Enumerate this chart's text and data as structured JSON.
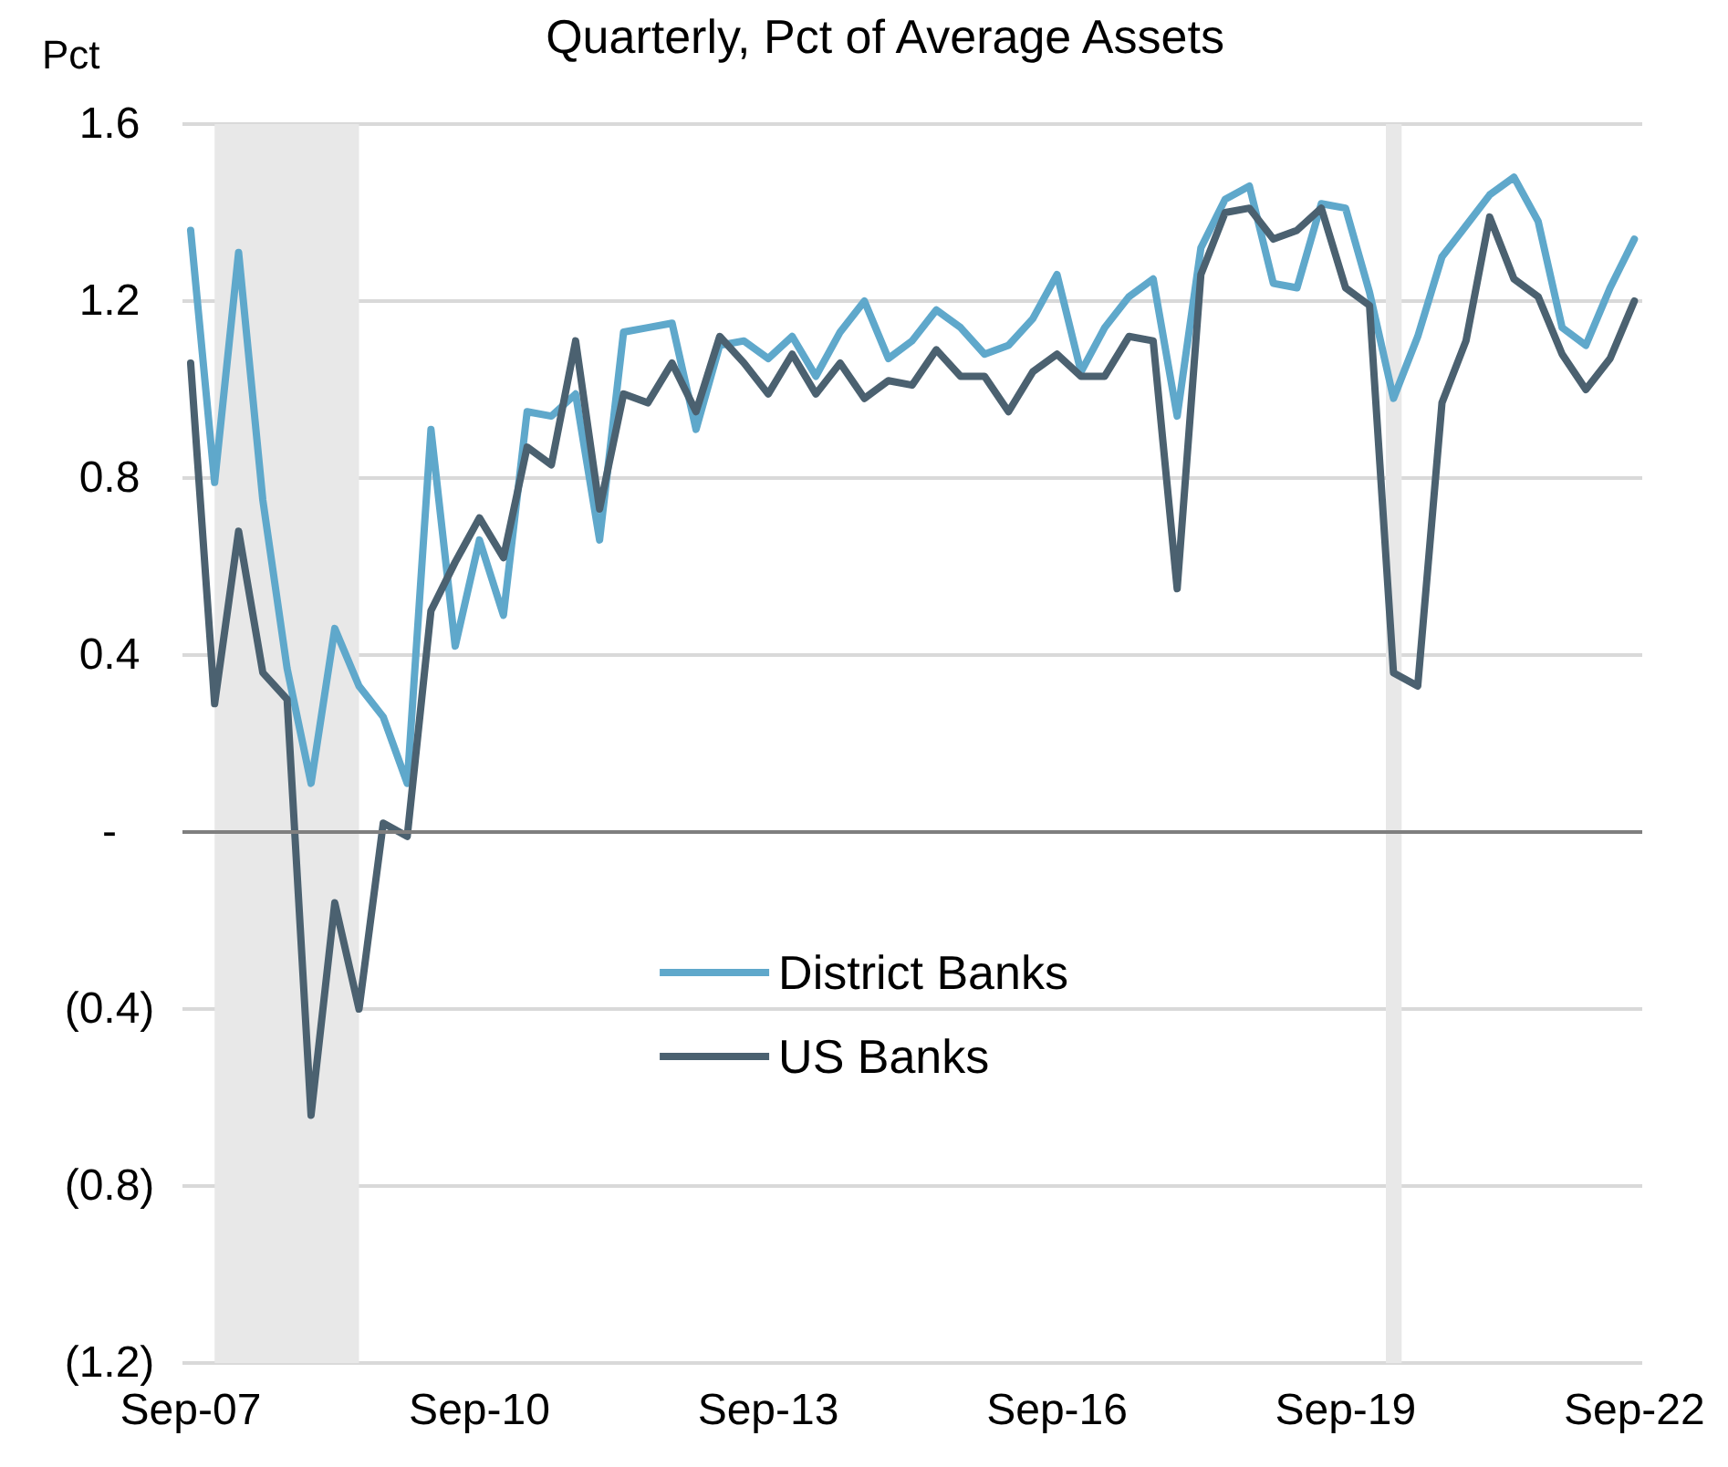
{
  "chart_data": {
    "type": "line",
    "title": "Quarterly, Pct of Average Assets",
    "ylabel": "Pct",
    "x": [
      "2007-09",
      "2007-12",
      "2008-03",
      "2008-06",
      "2008-09",
      "2008-12",
      "2009-03",
      "2009-06",
      "2009-09",
      "2009-12",
      "2010-03",
      "2010-06",
      "2010-09",
      "2010-12",
      "2011-03",
      "2011-06",
      "2011-09",
      "2011-12",
      "2012-03",
      "2012-06",
      "2012-09",
      "2012-12",
      "2013-03",
      "2013-06",
      "2013-09",
      "2013-12",
      "2014-03",
      "2014-06",
      "2014-09",
      "2014-12",
      "2015-03",
      "2015-06",
      "2015-09",
      "2015-12",
      "2016-03",
      "2016-06",
      "2016-09",
      "2016-12",
      "2017-03",
      "2017-06",
      "2017-09",
      "2017-12",
      "2018-03",
      "2018-06",
      "2018-09",
      "2018-12",
      "2019-03",
      "2019-06",
      "2019-09",
      "2019-12",
      "2020-03",
      "2020-06",
      "2020-09",
      "2020-12",
      "2021-03",
      "2021-06",
      "2021-09",
      "2021-12",
      "2022-03",
      "2022-06",
      "2022-09"
    ],
    "series": [
      {
        "name": "District Banks",
        "color": "#5fa8cb",
        "values": [
          1.36,
          0.79,
          1.31,
          0.75,
          0.37,
          0.11,
          0.46,
          0.33,
          0.26,
          0.11,
          0.91,
          0.42,
          0.66,
          0.49,
          0.95,
          0.94,
          0.99,
          0.66,
          1.13,
          1.14,
          1.15,
          0.91,
          1.1,
          1.11,
          1.07,
          1.12,
          1.03,
          1.13,
          1.2,
          1.07,
          1.11,
          1.18,
          1.14,
          1.08,
          1.1,
          1.16,
          1.26,
          1.04,
          1.14,
          1.21,
          1.25,
          0.94,
          1.32,
          1.43,
          1.46,
          1.24,
          1.23,
          1.42,
          1.41,
          1.22,
          0.98,
          1.12,
          1.3,
          1.37,
          1.44,
          1.48,
          1.38,
          1.14,
          1.1,
          1.23,
          1.34
        ]
      },
      {
        "name": "US Banks",
        "color": "#4b6170",
        "values": [
          1.06,
          0.29,
          0.68,
          0.36,
          0.3,
          -0.64,
          -0.16,
          -0.4,
          0.02,
          -0.01,
          0.5,
          0.61,
          0.71,
          0.62,
          0.87,
          0.83,
          1.11,
          0.73,
          0.99,
          0.97,
          1.06,
          0.95,
          1.12,
          1.06,
          0.99,
          1.08,
          0.99,
          1.06,
          0.98,
          1.02,
          1.01,
          1.09,
          1.03,
          1.03,
          0.95,
          1.04,
          1.08,
          1.03,
          1.03,
          1.12,
          1.11,
          0.55,
          1.26,
          1.4,
          1.41,
          1.34,
          1.36,
          1.41,
          1.23,
          1.19,
          0.36,
          0.33,
          0.97,
          1.11,
          1.39,
          1.25,
          1.21,
          1.08,
          1.0,
          1.07,
          1.2
        ]
      }
    ],
    "xlim": [
      "2007-08",
      "2022-10"
    ],
    "xticks": [
      {
        "value": "2007-09",
        "label": "Sep-07"
      },
      {
        "value": "2010-09",
        "label": "Sep-10"
      },
      {
        "value": "2013-09",
        "label": "Sep-13"
      },
      {
        "value": "2016-09",
        "label": "Sep-16"
      },
      {
        "value": "2019-09",
        "label": "Sep-19"
      },
      {
        "value": "2022-09",
        "label": "Sep-22"
      }
    ],
    "ylim": [
      -1.2,
      1.6
    ],
    "yticks": [
      {
        "value": -1.2,
        "label": "(1.2)"
      },
      {
        "value": -0.8,
        "label": "(0.8)"
      },
      {
        "value": -0.4,
        "label": "(0.4)"
      },
      {
        "value": 0,
        "label": "-"
      },
      0.4,
      0.8,
      1.2,
      1.6
    ],
    "ref_lines": [
      {
        "axis": "y",
        "value": 0,
        "color": "#7f7f7f"
      }
    ],
    "bands": [
      {
        "axis": "x",
        "from": "2007-12",
        "to": "2009-06",
        "color": "#e8e8e8"
      },
      {
        "axis": "x",
        "from": "2020-02",
        "to": "2020-04",
        "color": "#e8e8e8"
      }
    ],
    "grid": "y",
    "legend": "center",
    "line_style": "solid",
    "marker": "none"
  }
}
